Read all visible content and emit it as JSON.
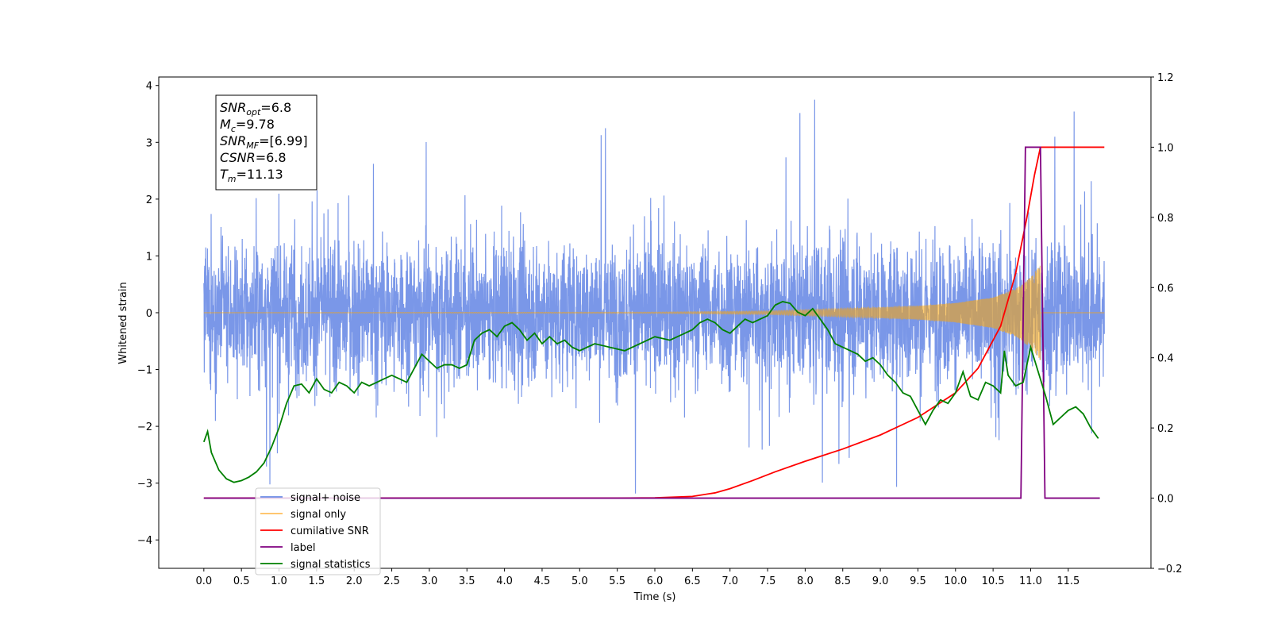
{
  "chart_data": {
    "type": "line",
    "xlabel": "Time (s)",
    "ylabel": "Whitened strain",
    "xlim": [
      -0.6,
      12.6
    ],
    "ylim": [
      -4.5,
      4.15
    ],
    "ylim_right": [
      -0.2,
      1.2
    ],
    "x_ticks": [
      0.0,
      0.5,
      1.0,
      1.5,
      2.0,
      2.5,
      3.0,
      3.5,
      4.0,
      4.5,
      5.0,
      5.5,
      6.0,
      6.5,
      7.0,
      7.5,
      8.0,
      8.5,
      9.0,
      9.5,
      10.0,
      10.5,
      11.0,
      11.5
    ],
    "x_tick_labels": [
      "0.0",
      "0.5",
      "1.0",
      "1.5",
      "2.0",
      "2.5",
      "3.0",
      "3.5",
      "4.0",
      "4.5",
      "5.0",
      "5.5",
      "6.0",
      "6.5",
      "7.0",
      "7.5",
      "8.0",
      "8.5",
      "9.0",
      "9.5",
      "10.0",
      "10.5",
      "11.0",
      "11.5"
    ],
    "y_ticks_left": [
      -4,
      -3,
      -2,
      -1,
      0,
      1,
      2,
      3,
      4
    ],
    "y_tick_labels_left": [
      "−4",
      "−3",
      "−2",
      "−1",
      "0",
      "1",
      "2",
      "3",
      "4"
    ],
    "y_ticks_right": [
      -0.2,
      0.0,
      0.2,
      0.4,
      0.6,
      0.8,
      1.0,
      1.2
    ],
    "y_tick_labels_right": [
      "−0.2",
      "0.0",
      "0.2",
      "0.4",
      "0.6",
      "0.8",
      "1.0",
      "1.2"
    ],
    "grid": false,
    "legend_location": "lower-left",
    "info_box": {
      "lines": [
        {
          "main": "SNR",
          "sub": "opt",
          "value": "=6.8"
        },
        {
          "main": "M",
          "sub": "c",
          "value": "=9.78"
        },
        {
          "main": "SNR",
          "sub": "MF",
          "value": "=[6.99]"
        },
        {
          "main": "CSNR",
          "sub": "",
          "value": "=6.8"
        },
        {
          "main": "T",
          "sub": "m",
          "value": "=11.13"
        }
      ]
    },
    "series": [
      {
        "name": "signal+ noise",
        "axis": "left",
        "color": "#6b8ce6",
        "style": "noise",
        "x_start": 0.0,
        "x_end": 11.98,
        "std": 0.85,
        "spike_max": 3.75,
        "spike_min": -4.1
      },
      {
        "name": "signal only",
        "axis": "left",
        "color": "#ffa500",
        "style": "chirp",
        "x_start": 0.0,
        "x_end": 11.98,
        "merger_time": 11.13,
        "peak_amplitude": 0.85,
        "envelope_points": [
          [
            0.0,
            0.0
          ],
          [
            6.0,
            0.01
          ],
          [
            7.5,
            0.03
          ],
          [
            8.5,
            0.07
          ],
          [
            9.5,
            0.12
          ],
          [
            10.0,
            0.17
          ],
          [
            10.5,
            0.27
          ],
          [
            10.8,
            0.42
          ],
          [
            11.0,
            0.62
          ],
          [
            11.13,
            0.85
          ]
        ]
      },
      {
        "name": "cumilative SNR",
        "axis": "right",
        "color": "#ff0000",
        "x": [
          0.0,
          5.5,
          6.0,
          6.5,
          6.8,
          7.0,
          7.3,
          7.6,
          8.0,
          8.5,
          9.0,
          9.5,
          10.0,
          10.3,
          10.6,
          10.8,
          10.95,
          11.05,
          11.13,
          11.2,
          11.5,
          11.98
        ],
        "y": [
          0.0,
          0.0,
          0.001,
          0.005,
          0.015,
          0.027,
          0.05,
          0.075,
          0.105,
          0.14,
          0.18,
          0.23,
          0.3,
          0.37,
          0.49,
          0.64,
          0.8,
          0.92,
          1.0,
          1.0,
          1.0,
          1.0
        ]
      },
      {
        "name": "label",
        "axis": "right",
        "color": "#800080",
        "x": [
          0.0,
          10.87,
          10.93,
          11.13,
          11.19,
          11.92
        ],
        "y": [
          0.0,
          0.0,
          1.0,
          1.0,
          0.0,
          0.0
        ]
      },
      {
        "name": "signal statistics",
        "axis": "right",
        "color": "#008000",
        "x": [
          0.0,
          0.05,
          0.1,
          0.2,
          0.3,
          0.4,
          0.5,
          0.6,
          0.7,
          0.8,
          0.9,
          1.0,
          1.1,
          1.2,
          1.3,
          1.4,
          1.5,
          1.6,
          1.7,
          1.8,
          1.9,
          2.0,
          2.1,
          2.2,
          2.3,
          2.4,
          2.5,
          2.6,
          2.7,
          2.8,
          2.9,
          3.0,
          3.1,
          3.2,
          3.3,
          3.4,
          3.5,
          3.6,
          3.7,
          3.8,
          3.9,
          4.0,
          4.1,
          4.2,
          4.3,
          4.4,
          4.5,
          4.6,
          4.7,
          4.8,
          4.9,
          5.0,
          5.2,
          5.4,
          5.6,
          5.8,
          6.0,
          6.2,
          6.4,
          6.5,
          6.6,
          6.7,
          6.8,
          6.9,
          7.0,
          7.1,
          7.2,
          7.3,
          7.4,
          7.5,
          7.6,
          7.7,
          7.8,
          7.9,
          8.0,
          8.1,
          8.2,
          8.3,
          8.4,
          8.5,
          8.6,
          8.7,
          8.8,
          8.9,
          9.0,
          9.1,
          9.2,
          9.3,
          9.4,
          9.5,
          9.6,
          9.7,
          9.8,
          9.9,
          10.0,
          10.1,
          10.2,
          10.3,
          10.4,
          10.5,
          10.6,
          10.65,
          10.7,
          10.8,
          10.9,
          11.0,
          11.1,
          11.2,
          11.3,
          11.4,
          11.5,
          11.6,
          11.7,
          11.8,
          11.9
        ],
        "y": [
          0.16,
          0.19,
          0.13,
          0.08,
          0.055,
          0.045,
          0.05,
          0.06,
          0.075,
          0.1,
          0.145,
          0.2,
          0.27,
          0.32,
          0.325,
          0.3,
          0.34,
          0.31,
          0.3,
          0.33,
          0.32,
          0.3,
          0.33,
          0.32,
          0.33,
          0.34,
          0.35,
          0.34,
          0.33,
          0.37,
          0.41,
          0.39,
          0.37,
          0.38,
          0.38,
          0.37,
          0.38,
          0.45,
          0.47,
          0.48,
          0.46,
          0.49,
          0.5,
          0.48,
          0.45,
          0.47,
          0.44,
          0.46,
          0.44,
          0.45,
          0.43,
          0.42,
          0.44,
          0.43,
          0.42,
          0.44,
          0.46,
          0.45,
          0.47,
          0.48,
          0.5,
          0.51,
          0.5,
          0.48,
          0.47,
          0.49,
          0.51,
          0.5,
          0.51,
          0.52,
          0.55,
          0.56,
          0.555,
          0.53,
          0.52,
          0.54,
          0.51,
          0.48,
          0.44,
          0.43,
          0.42,
          0.41,
          0.39,
          0.4,
          0.38,
          0.35,
          0.33,
          0.3,
          0.29,
          0.25,
          0.21,
          0.25,
          0.28,
          0.27,
          0.3,
          0.36,
          0.29,
          0.28,
          0.33,
          0.32,
          0.3,
          0.42,
          0.35,
          0.32,
          0.33,
          0.43,
          0.36,
          0.29,
          0.21,
          0.23,
          0.25,
          0.26,
          0.24,
          0.2,
          0.17
        ]
      }
    ]
  },
  "legend": {
    "items": [
      {
        "label": "signal+ noise",
        "color": "#6b8ce6"
      },
      {
        "label": "signal only",
        "color": "#ffbe5c"
      },
      {
        "label": "cumilative SNR",
        "color": "#ff0000"
      },
      {
        "label": "label",
        "color": "#800080"
      },
      {
        "label": "signal statistics",
        "color": "#008000"
      }
    ]
  }
}
